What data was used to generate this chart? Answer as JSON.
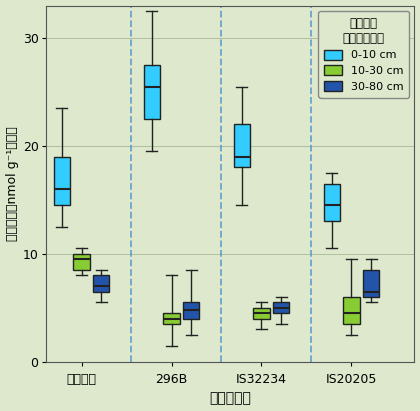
{
  "groups": [
    "活培なし",
    "296B",
    "IS32234",
    "IS20205"
  ],
  "xlabel": "系　統　名",
  "ylabel": "硭化活性（nmol g⁻¹仾土）",
  "ylim": [
    0,
    33
  ],
  "yticks": [
    0,
    10,
    20,
    30
  ],
  "legend_title": "土壌深度\n（表層より）",
  "legend_labels": [
    "0-10 cm",
    "10-30 cm",
    "30-80 cm"
  ],
  "colors": {
    "0-10": "#33CCFF",
    "10-30": "#88CC33",
    "30-80": "#2255AA"
  },
  "color_edge": "#222222",
  "bg_color": "#DDE8CC",
  "grid_color": "#AABB99",
  "dashed_color": "#5599CC",
  "box_data": {
    "活培なし": {
      "0-10": {
        "whislo": 12.5,
        "q1": 14.5,
        "med": 16.0,
        "q3": 19.0,
        "whishi": 23.5
      },
      "10-30": {
        "whislo": 8.0,
        "q1": 8.5,
        "med": 9.5,
        "q3": 10.0,
        "whishi": 10.5
      },
      "30-80": {
        "whislo": 5.5,
        "q1": 6.5,
        "med": 7.0,
        "q3": 8.0,
        "whishi": 8.5
      }
    },
    "296B": {
      "0-10": {
        "whislo": 19.5,
        "q1": 22.5,
        "med": 25.5,
        "q3": 27.5,
        "whishi": 32.5
      },
      "10-30": {
        "whislo": 1.5,
        "q1": 3.5,
        "med": 4.0,
        "q3": 4.5,
        "whishi": 8.0
      },
      "30-80": {
        "whislo": 2.5,
        "q1": 4.0,
        "med": 4.8,
        "q3": 5.5,
        "whishi": 8.5
      }
    },
    "IS32234": {
      "0-10": {
        "whislo": 14.5,
        "q1": 18.0,
        "med": 19.0,
        "q3": 22.0,
        "whishi": 25.5
      },
      "10-30": {
        "whislo": 3.0,
        "q1": 4.0,
        "med": 4.5,
        "q3": 5.0,
        "whishi": 5.5
      },
      "30-80": {
        "whislo": 3.5,
        "q1": 4.5,
        "med": 5.0,
        "q3": 5.5,
        "whishi": 6.0
      }
    },
    "IS20205": {
      "0-10": {
        "whislo": 10.5,
        "q1": 13.0,
        "med": 14.5,
        "q3": 16.5,
        "whishi": 17.5
      },
      "10-30": {
        "whislo": 2.5,
        "q1": 3.5,
        "med": 4.5,
        "q3": 6.0,
        "whishi": 9.5
      },
      "30-80": {
        "whislo": 5.5,
        "q1": 6.0,
        "med": 6.5,
        "q3": 8.5,
        "whishi": 9.5
      }
    }
  }
}
